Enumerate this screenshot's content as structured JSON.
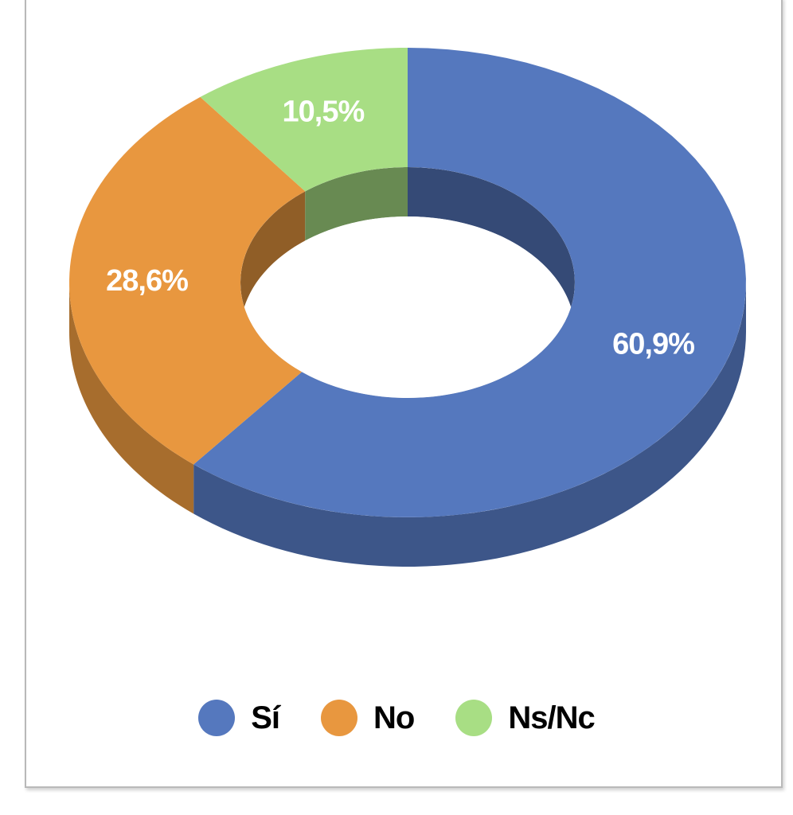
{
  "chart_data": {
    "type": "pie",
    "style": "3d-donut",
    "categories": [
      "Sí",
      "No",
      "Ns/Nc"
    ],
    "values": [
      60.9,
      28.6,
      10.5
    ],
    "data_labels": [
      "60,9%",
      "28,6%",
      "10,5%"
    ],
    "colors": [
      "#5578be",
      "#e8973f",
      "#a8de84"
    ],
    "legend_placement": "bottom-center"
  },
  "legend": {
    "items": [
      {
        "label": "Sí",
        "color": "#5578be"
      },
      {
        "label": "No",
        "color": "#e8973f"
      },
      {
        "label": "Ns/Nc",
        "color": "#a8de84"
      }
    ]
  }
}
